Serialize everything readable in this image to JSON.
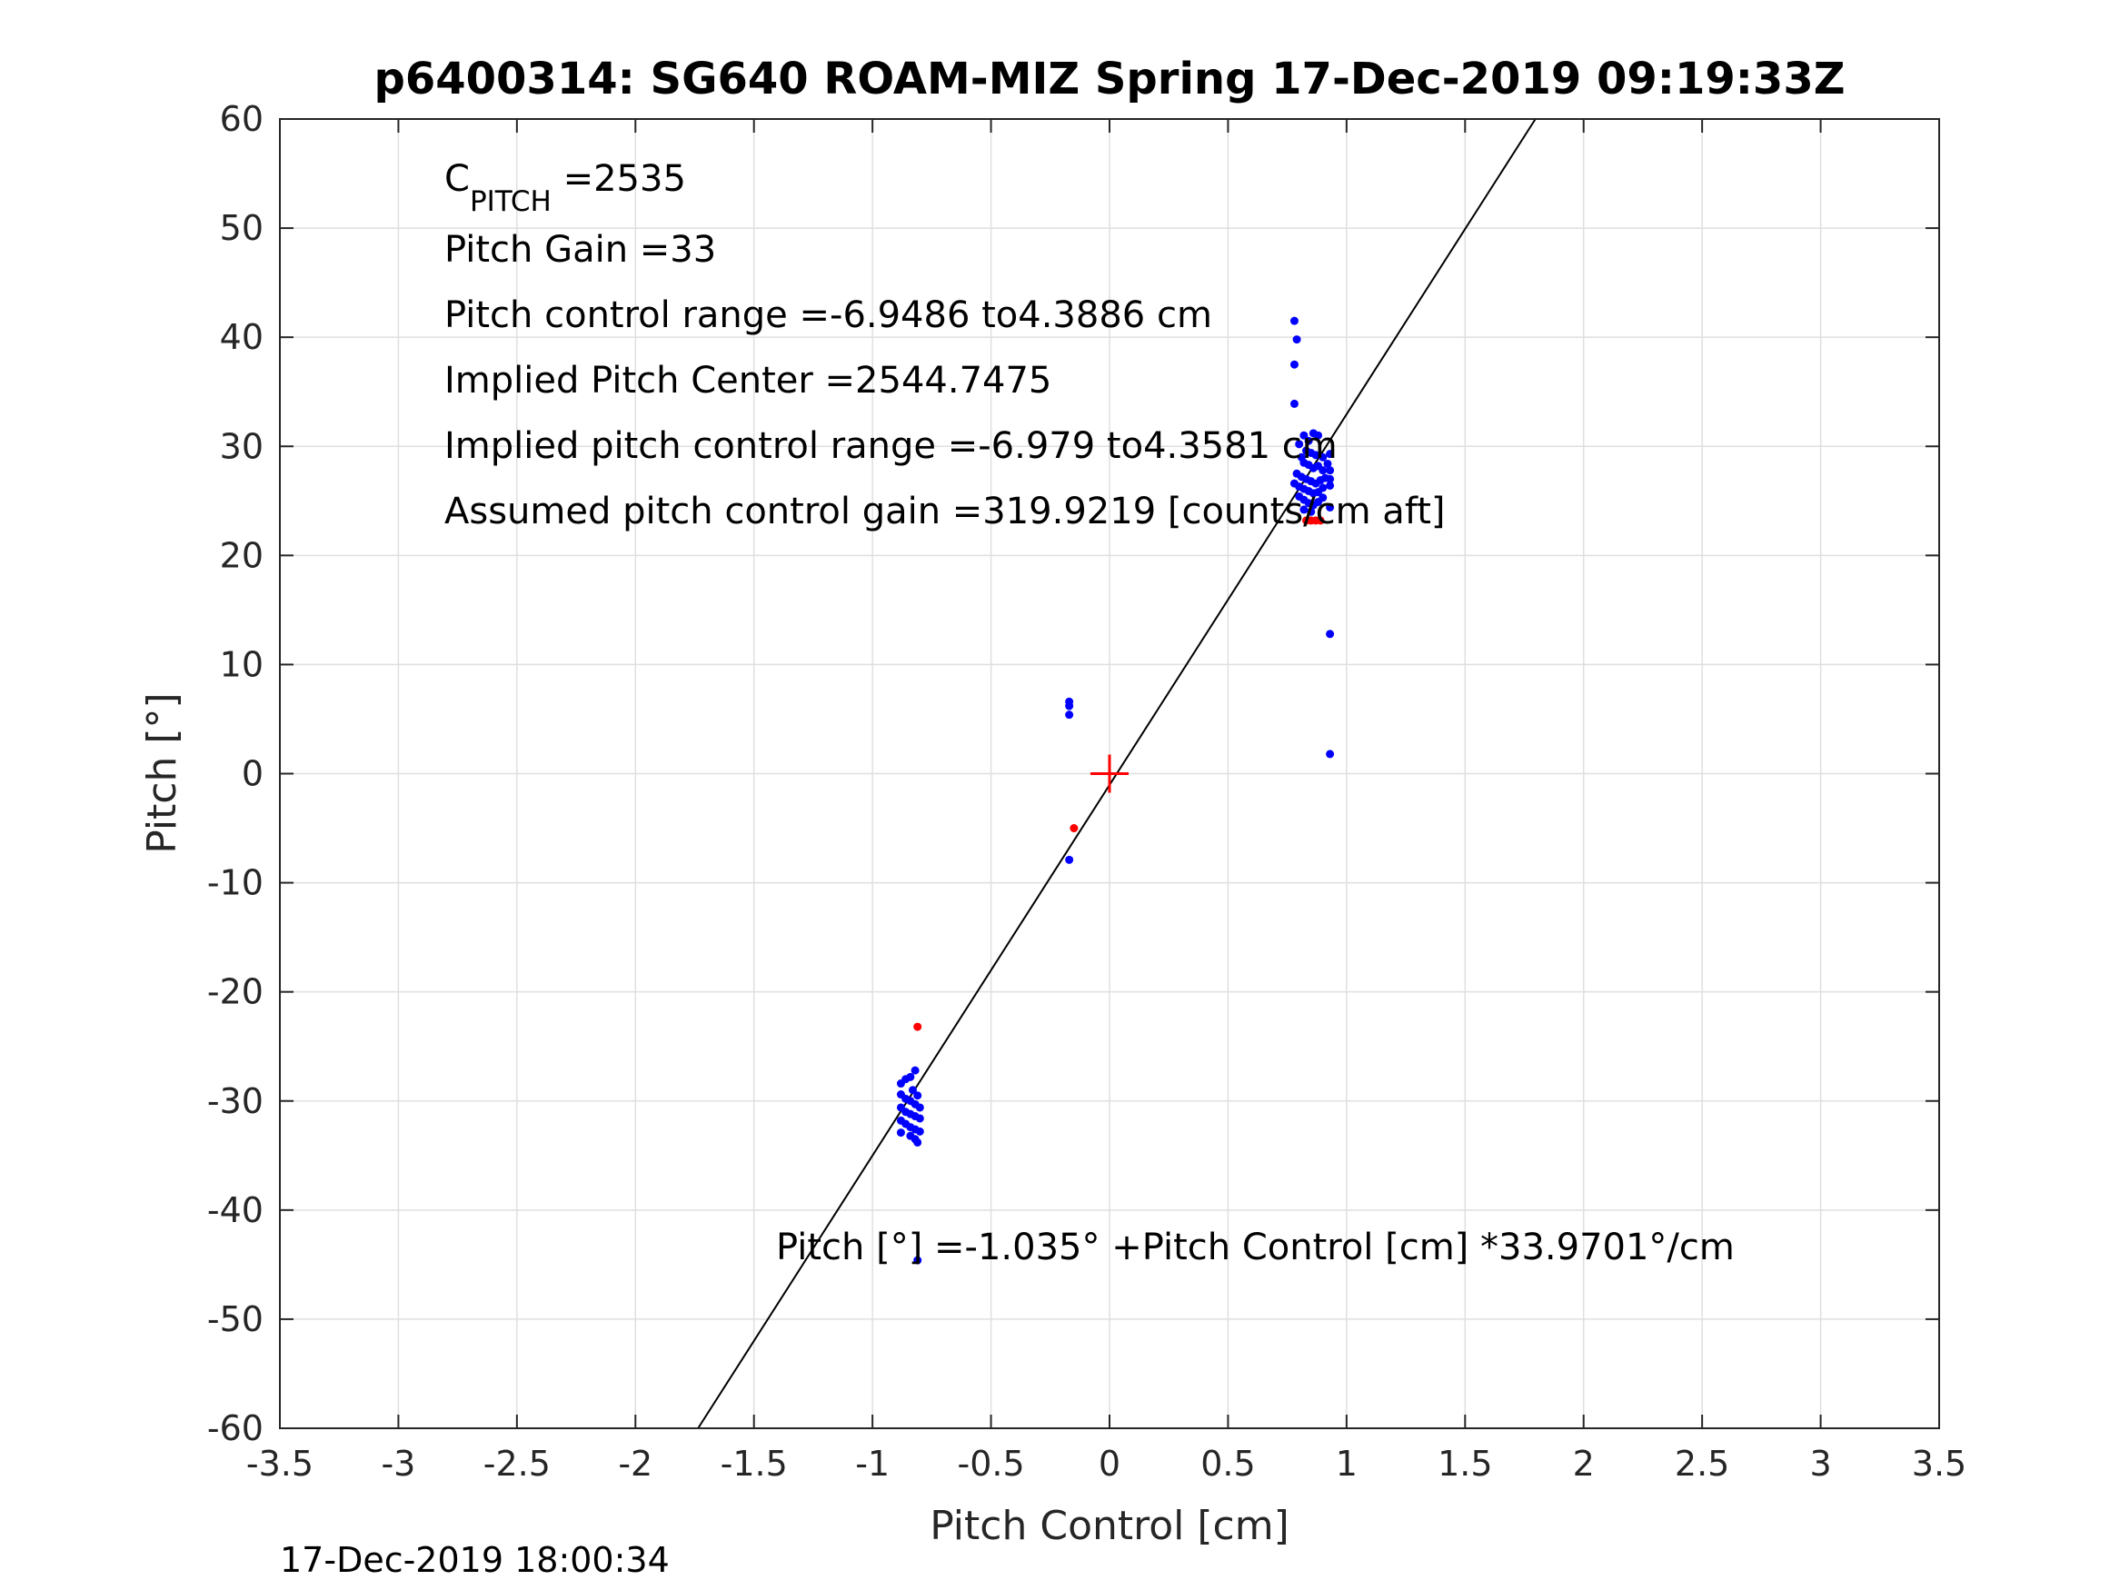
{
  "chart_data": {
    "type": "scatter",
    "title": "p6400314: SG640 ROAM-MIZ Spring 17-Dec-2019 09:19:33Z",
    "xlabel": "Pitch Control [cm]",
    "ylabel": "Pitch [°]",
    "xlim": [
      -3.5,
      3.5
    ],
    "ylim": [
      -60,
      60
    ],
    "xticks": [
      "-3.5",
      "-3",
      "-2.5",
      "-2",
      "-1.5",
      "-1",
      "-0.5",
      "0",
      "0.5",
      "1",
      "1.5",
      "2",
      "2.5",
      "3",
      "3.5"
    ],
    "yticks": [
      "-60",
      "-50",
      "-40",
      "-30",
      "-20",
      "-10",
      "0",
      "10",
      "20",
      "30",
      "40",
      "50",
      "60"
    ],
    "grid": true,
    "annotations": {
      "c_pitch_prefix": "C",
      "c_pitch_subscript": "PITCH",
      "c_pitch_value": " =2535",
      "pitch_gain": "Pitch Gain =33",
      "control_range": "Pitch control range =-6.9486 to4.3886 cm",
      "implied_center": "Implied Pitch Center =2544.7475",
      "implied_range": "Implied pitch control range =-6.979 to4.3581 cm",
      "assumed_gain": "Assumed pitch control gain =319.9219 [counts/cm aft]",
      "fit_equation": "Pitch [°] =-1.035° +Pitch Control [cm] *33.9701°/cm"
    },
    "fit_line": {
      "intercept": -1.035,
      "slope": 33.9701,
      "color": "#000000"
    },
    "center_marker": {
      "x": 0,
      "y": 0,
      "color": "#ff0000"
    },
    "series": [
      {
        "color": "#0000ff",
        "points": [
          [
            0.78,
            41.5
          ],
          [
            0.79,
            39.8
          ],
          [
            0.78,
            37.5
          ],
          [
            0.78,
            33.9
          ],
          [
            0.82,
            31.0
          ],
          [
            0.86,
            31.2
          ],
          [
            0.88,
            31.0
          ],
          [
            0.84,
            30.5
          ],
          [
            0.8,
            30.2
          ],
          [
            0.83,
            29.6
          ],
          [
            0.85,
            29.4
          ],
          [
            0.87,
            29.2
          ],
          [
            0.9,
            29.0
          ],
          [
            0.93,
            29.3
          ],
          [
            0.81,
            29.0
          ],
          [
            0.82,
            28.5
          ],
          [
            0.84,
            28.3
          ],
          [
            0.86,
            28.0
          ],
          [
            0.88,
            28.2
          ],
          [
            0.9,
            27.8
          ],
          [
            0.92,
            28.4
          ],
          [
            0.93,
            27.8
          ],
          [
            0.79,
            27.5
          ],
          [
            0.81,
            27.2
          ],
          [
            0.83,
            27.0
          ],
          [
            0.85,
            26.8
          ],
          [
            0.87,
            26.6
          ],
          [
            0.89,
            26.9
          ],
          [
            0.91,
            27.1
          ],
          [
            0.93,
            27.0
          ],
          [
            0.78,
            26.6
          ],
          [
            0.8,
            26.3
          ],
          [
            0.82,
            26.1
          ],
          [
            0.84,
            25.9
          ],
          [
            0.86,
            25.7
          ],
          [
            0.88,
            25.8
          ],
          [
            0.9,
            26.2
          ],
          [
            0.93,
            26.4
          ],
          [
            0.8,
            25.4
          ],
          [
            0.82,
            25.1
          ],
          [
            0.84,
            24.8
          ],
          [
            0.86,
            24.6
          ],
          [
            0.88,
            24.9
          ],
          [
            0.9,
            25.3
          ],
          [
            0.82,
            24.2
          ],
          [
            0.85,
            24.0
          ],
          [
            0.93,
            24.4
          ],
          [
            0.93,
            12.8
          ],
          [
            0.93,
            1.8
          ],
          [
            -0.17,
            6.6
          ],
          [
            -0.17,
            6.2
          ],
          [
            -0.17,
            5.4
          ],
          [
            -0.17,
            -7.9
          ],
          [
            -0.88,
            -28.4
          ],
          [
            -0.86,
            -28.0
          ],
          [
            -0.84,
            -27.8
          ],
          [
            -0.82,
            -27.2
          ],
          [
            -0.83,
            -29.0
          ],
          [
            -0.81,
            -29.5
          ],
          [
            -0.88,
            -29.4
          ],
          [
            -0.86,
            -29.8
          ],
          [
            -0.84,
            -30.0
          ],
          [
            -0.82,
            -30.3
          ],
          [
            -0.8,
            -30.6
          ],
          [
            -0.88,
            -30.6
          ],
          [
            -0.86,
            -31.0
          ],
          [
            -0.84,
            -31.2
          ],
          [
            -0.82,
            -31.4
          ],
          [
            -0.8,
            -31.6
          ],
          [
            -0.88,
            -31.8
          ],
          [
            -0.86,
            -32.1
          ],
          [
            -0.84,
            -32.4
          ],
          [
            -0.82,
            -32.6
          ],
          [
            -0.8,
            -32.8
          ],
          [
            -0.88,
            -32.9
          ],
          [
            -0.84,
            -33.2
          ],
          [
            -0.82,
            -33.5
          ],
          [
            -0.81,
            -33.8
          ],
          [
            -0.81,
            -44.6
          ]
        ]
      },
      {
        "color": "#ff0000",
        "points": [
          [
            -0.81,
            -23.2
          ],
          [
            -0.15,
            -5.0
          ],
          [
            0.83,
            23.2
          ],
          [
            0.85,
            23.2
          ],
          [
            0.87,
            23.2
          ],
          [
            0.89,
            23.2
          ]
        ]
      }
    ]
  },
  "footer": {
    "timestamp": "17-Dec-2019 18:00:34"
  }
}
